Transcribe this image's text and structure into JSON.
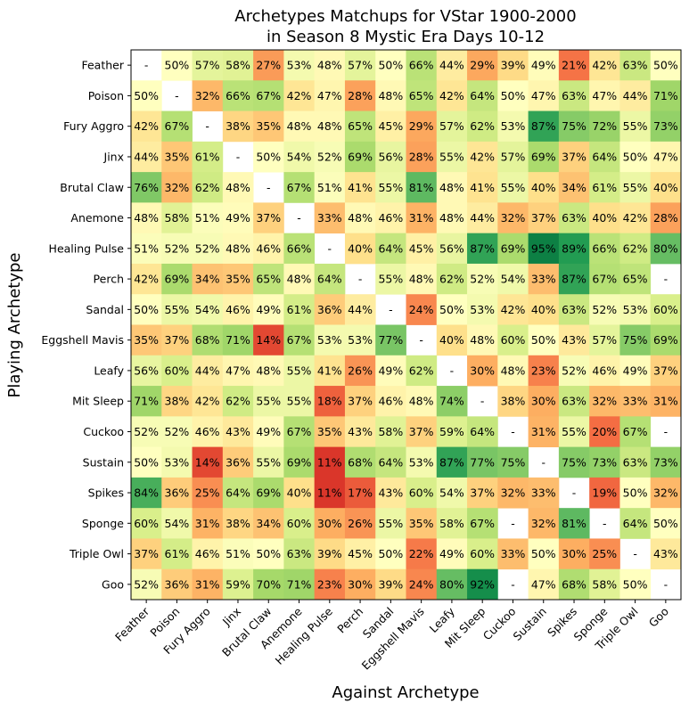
{
  "chart_data": {
    "type": "heatmap",
    "title_line1": "Archetypes Matchups for VStar 1900-2000",
    "title_line2": "in Season 8 Mystic Era Days 10-12",
    "xlabel": "Against Archetype",
    "ylabel": "Playing Archetype",
    "rows": [
      "Feather",
      "Poison",
      "Fury Aggro",
      "Jinx",
      "Brutal Claw",
      "Anemone",
      "Healing Pulse",
      "Perch",
      "Sandal",
      "Eggshell Mavis",
      "Leafy",
      "Mit Sleep",
      "Cuckoo",
      "Sustain",
      "Spikes",
      "Sponge",
      "Triple Owl",
      "Goo"
    ],
    "columns": [
      "Feather",
      "Poison",
      "Fury Aggro",
      "Jinx",
      "Brutal Claw",
      "Anemone",
      "Healing Pulse",
      "Perch",
      "Sandal",
      "Eggshell Mavis",
      "Leafy",
      "Mit Sleep",
      "Cuckoo",
      "Sustain",
      "Spikes",
      "Sponge",
      "Triple Owl",
      "Goo"
    ],
    "values": [
      [
        null,
        50,
        57,
        58,
        27,
        53,
        48,
        57,
        50,
        66,
        44,
        29,
        39,
        49,
        21,
        42,
        63,
        50
      ],
      [
        50,
        null,
        32,
        66,
        67,
        42,
        47,
        28,
        48,
        65,
        42,
        64,
        50,
        47,
        63,
        47,
        44,
        71
      ],
      [
        42,
        67,
        null,
        38,
        35,
        48,
        48,
        65,
        45,
        29,
        57,
        62,
        53,
        87,
        75,
        72,
        55,
        73
      ],
      [
        44,
        35,
        61,
        null,
        50,
        54,
        52,
        69,
        56,
        28,
        55,
        42,
        57,
        69,
        37,
        64,
        50,
        47
      ],
      [
        76,
        32,
        62,
        48,
        null,
        67,
        51,
        41,
        55,
        81,
        48,
        41,
        55,
        40,
        34,
        61,
        55,
        40
      ],
      [
        48,
        58,
        51,
        49,
        37,
        null,
        33,
        48,
        46,
        31,
        48,
        44,
        32,
        37,
        63,
        40,
        42,
        28
      ],
      [
        51,
        52,
        52,
        48,
        46,
        66,
        null,
        40,
        64,
        45,
        56,
        87,
        69,
        95,
        89,
        66,
        62,
        80
      ],
      [
        42,
        69,
        34,
        35,
        65,
        48,
        64,
        null,
        55,
        48,
        62,
        52,
        54,
        33,
        87,
        67,
        65,
        null
      ],
      [
        50,
        55,
        54,
        46,
        49,
        61,
        36,
        44,
        null,
        24,
        50,
        53,
        42,
        40,
        63,
        52,
        53,
        60
      ],
      [
        35,
        37,
        68,
        71,
        14,
        67,
        53,
        53,
        77,
        null,
        40,
        48,
        60,
        50,
        43,
        57,
        75,
        69
      ],
      [
        56,
        60,
        44,
        47,
        48,
        55,
        41,
        26,
        49,
        62,
        null,
        30,
        48,
        23,
        52,
        46,
        49,
        37
      ],
      [
        71,
        38,
        42,
        62,
        55,
        55,
        18,
        37,
        46,
        48,
        74,
        null,
        38,
        30,
        63,
        32,
        33,
        31
      ],
      [
        52,
        52,
        46,
        43,
        49,
        67,
        35,
        43,
        58,
        37,
        59,
        64,
        null,
        31,
        55,
        20,
        67,
        null
      ],
      [
        50,
        53,
        14,
        36,
        55,
        69,
        11,
        68,
        64,
        53,
        87,
        77,
        75,
        null,
        75,
        73,
        63,
        73
      ],
      [
        84,
        36,
        25,
        64,
        69,
        40,
        11,
        17,
        43,
        60,
        54,
        37,
        32,
        33,
        null,
        19,
        50,
        32
      ],
      [
        60,
        54,
        31,
        38,
        34,
        60,
        30,
        26,
        55,
        35,
        58,
        67,
        null,
        32,
        81,
        null,
        64,
        50
      ],
      [
        37,
        61,
        46,
        51,
        50,
        63,
        39,
        45,
        50,
        22,
        49,
        60,
        33,
        50,
        30,
        25,
        null,
        43
      ],
      [
        52,
        36,
        31,
        59,
        70,
        71,
        23,
        30,
        39,
        24,
        80,
        92,
        null,
        47,
        68,
        58,
        50,
        null
      ]
    ],
    "empty_label": "-",
    "value_suffix": "%",
    "colormap": "RdYlGn",
    "vmin": 0,
    "vmax": 100
  }
}
